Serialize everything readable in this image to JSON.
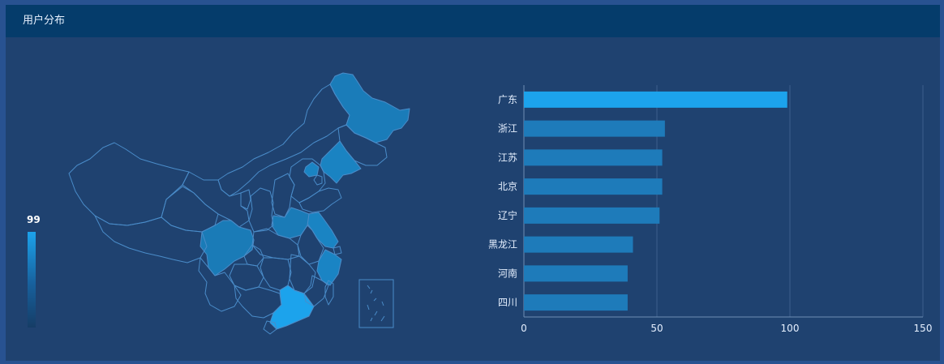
{
  "panel": {
    "title": "用户分布"
  },
  "visual_map": {
    "max_label": "99",
    "color_high": "#1ca3ec",
    "color_low": "#163d66"
  },
  "map_regions": [
    {
      "name": "黑龙江",
      "value": 41
    },
    {
      "name": "内蒙古",
      "value": 0
    },
    {
      "name": "吉林",
      "value": 0
    },
    {
      "name": "辽宁",
      "value": 51
    },
    {
      "name": "北京",
      "value": 52
    },
    {
      "name": "河北",
      "value": 0
    },
    {
      "name": "天津",
      "value": 0
    },
    {
      "name": "山东",
      "value": 0
    },
    {
      "name": "江苏",
      "value": 52
    },
    {
      "name": "浙江",
      "value": 53
    },
    {
      "name": "上海",
      "value": 0
    },
    {
      "name": "河南",
      "value": 39
    },
    {
      "name": "四川",
      "value": 39
    },
    {
      "name": "广东",
      "value": 99
    },
    {
      "name": "新疆",
      "value": 0
    },
    {
      "name": "西藏",
      "value": 0
    },
    {
      "name": "青海",
      "value": 0
    },
    {
      "name": "甘肃",
      "value": 0
    },
    {
      "name": "宁夏",
      "value": 0
    },
    {
      "name": "陕西",
      "value": 0
    },
    {
      "name": "山西",
      "value": 0
    },
    {
      "name": "湖北",
      "value": 0
    },
    {
      "name": "安徽",
      "value": 0
    },
    {
      "name": "重庆",
      "value": 0
    },
    {
      "name": "湖南",
      "value": 0
    },
    {
      "name": "江西",
      "value": 0
    },
    {
      "name": "福建",
      "value": 0
    },
    {
      "name": "贵州",
      "value": 0
    },
    {
      "name": "云南",
      "value": 0
    },
    {
      "name": "广西",
      "value": 0
    },
    {
      "name": "海南",
      "value": 0
    },
    {
      "name": "台湾",
      "value": 0
    }
  ],
  "chart_data": {
    "type": "bar",
    "orientation": "horizontal",
    "categories": [
      "广东",
      "浙江",
      "江苏",
      "北京",
      "辽宁",
      "黑龙江",
      "河南",
      "四川"
    ],
    "values": [
      99,
      53,
      52,
      52,
      51,
      41,
      39,
      39
    ],
    "xlim": [
      0,
      150
    ],
    "xticks": [
      "0",
      "50",
      "100",
      "150"
    ],
    "grid": true,
    "colors": {
      "max": "#1ca3ec",
      "other": "#1e7bba"
    }
  }
}
